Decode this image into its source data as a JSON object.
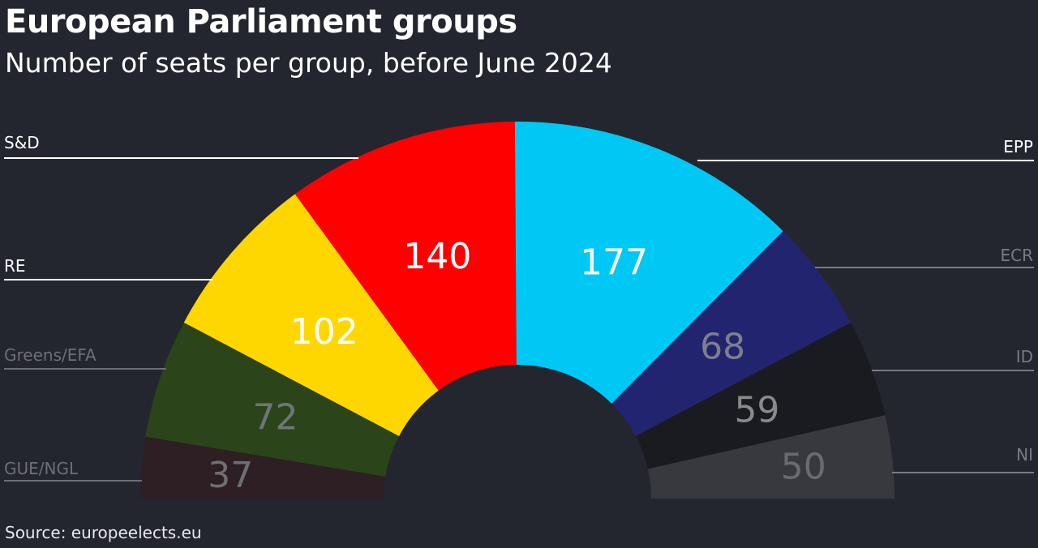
{
  "chart_data": {
    "type": "pie",
    "subtype": "semicircle-parliament",
    "title": "European Parliament groups",
    "subtitle": "Number of seats per group, before June 2024",
    "source": "Source: europeelects.eu",
    "series": [
      {
        "name": "GUE/NGL",
        "value": 37,
        "color": "#2e1f24",
        "text_color": "#6e6e74",
        "label_color": "#6e6e74"
      },
      {
        "name": "Greens/EFA",
        "value": 72,
        "color": "#2b4419",
        "text_color": "#70747a",
        "label_color": "#6e6e74"
      },
      {
        "name": "RE",
        "value": 102,
        "color": "#ffd700",
        "text_color": "#ffffff",
        "label_color": "#ffffff"
      },
      {
        "name": "S&D",
        "value": 140,
        "color": "#ff0000",
        "text_color": "#ffffff",
        "label_color": "#ffffff"
      },
      {
        "name": "EPP",
        "value": 177,
        "color": "#00c8f5",
        "text_color": "#ffffff",
        "label_color": "#ffffff"
      },
      {
        "name": "ECR",
        "value": 68,
        "color": "#23246f",
        "text_color": "#7e7e8e",
        "label_color": "#7a7a80"
      },
      {
        "name": "ID",
        "value": 59,
        "color": "#1a1b21",
        "text_color": "#8a8a8e",
        "label_color": "#7a7a80"
      },
      {
        "name": "NI",
        "value": 50,
        "color": "#38393e",
        "text_color": "#6a6a70",
        "label_color": "#7a7a80"
      }
    ],
    "legend": "leader-lines left and right"
  }
}
